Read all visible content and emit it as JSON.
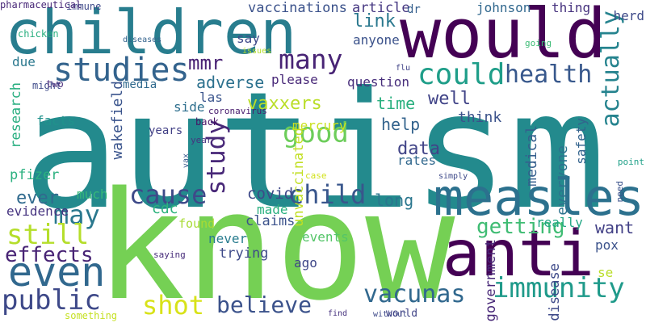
{
  "words": [
    {
      "text": "autism",
      "color": "#238a8d",
      "vertical": false
    },
    {
      "text": "know",
      "color": "#75d054",
      "vertical": false
    },
    {
      "text": "children",
      "color": "#287d8e",
      "vertical": false
    },
    {
      "text": "would",
      "color": "#440154",
      "vertical": false
    },
    {
      "text": "anti",
      "color": "#440154",
      "vertical": false
    },
    {
      "text": "measles",
      "color": "#2c718e",
      "vertical": false
    },
    {
      "text": "even",
      "color": "#31688e",
      "vertical": false
    },
    {
      "text": "studies",
      "color": "#33638d",
      "vertical": false
    },
    {
      "text": "could",
      "color": "#1f9e89",
      "vertical": false
    },
    {
      "text": "many",
      "color": "#482475",
      "vertical": false
    },
    {
      "text": "health",
      "color": "#38588c",
      "vertical": false
    },
    {
      "text": "actually",
      "color": "#25838e",
      "vertical": true
    },
    {
      "text": "good",
      "color": "#6ccd5a",
      "vertical": false
    },
    {
      "text": "study",
      "color": "#482878",
      "vertical": true
    },
    {
      "text": "cause",
      "color": "#3e4a89",
      "vertical": false
    },
    {
      "text": "child",
      "color": "#39568c",
      "vertical": false
    },
    {
      "text": "may",
      "color": "#2a788e",
      "vertical": false
    },
    {
      "text": "still",
      "color": "#b5de2b",
      "vertical": false
    },
    {
      "text": "effects",
      "color": "#482475",
      "vertical": false
    },
    {
      "text": "public",
      "color": "#3e4989",
      "vertical": false
    },
    {
      "text": "shot",
      "color": "#d8e219",
      "vertical": false
    },
    {
      "text": "believe",
      "color": "#3b528b",
      "vertical": false
    },
    {
      "text": "vacunas",
      "color": "#31688e",
      "vertical": false
    },
    {
      "text": "immunity",
      "color": "#1f9a8a",
      "vertical": false
    },
    {
      "text": "getting",
      "color": "#3fbc73",
      "vertical": false
    },
    {
      "text": "want",
      "color": "#424086",
      "vertical": false
    },
    {
      "text": "mmr",
      "color": "#482173",
      "vertical": false
    },
    {
      "text": "adverse",
      "color": "#2c718e",
      "vertical": false
    },
    {
      "text": "link",
      "color": "#2a788e",
      "vertical": false
    },
    {
      "text": "well",
      "color": "#404387",
      "vertical": false
    },
    {
      "text": "vaccinations",
      "color": "#3b528b",
      "vertical": false
    },
    {
      "text": "article",
      "color": "#453781",
      "vertical": false
    },
    {
      "text": "dr",
      "color": "#355f8d",
      "vertical": false
    },
    {
      "text": "johnson",
      "color": "#31688e",
      "vertical": false
    },
    {
      "text": "thing",
      "color": "#46327e",
      "vertical": false
    },
    {
      "text": "immune",
      "color": "#3e4989",
      "vertical": false
    },
    {
      "text": "say",
      "color": "#3e4989",
      "vertical": false
    },
    {
      "text": "anyone",
      "color": "#3b528b",
      "vertical": false
    },
    {
      "text": "due",
      "color": "#2a788e",
      "vertical": false
    },
    {
      "text": "please",
      "color": "#482878",
      "vertical": false
    },
    {
      "text": "question",
      "color": "#472d7b",
      "vertical": false
    },
    {
      "text": "las",
      "color": "#3a548c",
      "vertical": false
    },
    {
      "text": "side",
      "color": "#2e6f8e",
      "vertical": false
    },
    {
      "text": "media",
      "color": "#306a8e",
      "vertical": false
    },
    {
      "text": "facts",
      "color": "#20928c",
      "vertical": false
    },
    {
      "text": "research",
      "color": "#28ae80",
      "vertical": true
    },
    {
      "text": "wakefield",
      "color": "#3a548c",
      "vertical": true
    },
    {
      "text": "vaxxers",
      "color": "#bade28",
      "vertical": false
    },
    {
      "text": "time",
      "color": "#2ab07f",
      "vertical": false
    },
    {
      "text": "help",
      "color": "#33638d",
      "vertical": false
    },
    {
      "text": "think",
      "color": "#3b528b",
      "vertical": false
    },
    {
      "text": "medical",
      "color": "#355f8d",
      "vertical": true
    },
    {
      "text": "everyone",
      "color": "#2c728e",
      "vertical": true
    },
    {
      "text": "safety",
      "color": "#33638d",
      "vertical": true
    },
    {
      "text": "herd",
      "color": "#3e4a89",
      "vertical": false
    },
    {
      "text": "unvaccinated",
      "color": "#c2df23",
      "vertical": true
    },
    {
      "text": "mercury",
      "color": "#cae11f",
      "vertical": false
    },
    {
      "text": "data",
      "color": "#414487",
      "vertical": false
    },
    {
      "text": "rates",
      "color": "#31688e",
      "vertical": false
    },
    {
      "text": "years",
      "color": "#424086",
      "vertical": false
    },
    {
      "text": "pfizer",
      "color": "#2ab07f",
      "vertical": false
    },
    {
      "text": "ever",
      "color": "#306a8e",
      "vertical": false
    },
    {
      "text": "much",
      "color": "#35b779",
      "vertical": false
    },
    {
      "text": "covid",
      "color": "#3e4989",
      "vertical": false
    },
    {
      "text": "long",
      "color": "#2a768e",
      "vertical": false
    },
    {
      "text": "cdc",
      "color": "#2db27d",
      "vertical": false
    },
    {
      "text": "claims",
      "color": "#3b528b",
      "vertical": false
    },
    {
      "text": "evidence",
      "color": "#463480",
      "vertical": false
    },
    {
      "text": "events",
      "color": "#54c568",
      "vertical": false
    },
    {
      "text": "really",
      "color": "#22a785",
      "vertical": false
    },
    {
      "text": "pox",
      "color": "#3b528b",
      "vertical": false
    },
    {
      "text": "never",
      "color": "#287c8e",
      "vertical": false
    },
    {
      "text": "trying",
      "color": "#3e4a89",
      "vertical": false
    },
    {
      "text": "ago",
      "color": "#3f4788",
      "vertical": false
    },
    {
      "text": "se",
      "color": "#bade28",
      "vertical": false
    },
    {
      "text": "made",
      "color": "#2ab07f",
      "vertical": false
    },
    {
      "text": "found",
      "color": "#a8db34",
      "vertical": false
    },
    {
      "text": "government",
      "color": "#482878",
      "vertical": true
    },
    {
      "text": "disease",
      "color": "#3e4a89",
      "vertical": true
    },
    {
      "text": "chicken",
      "color": "#29af7f",
      "vertical": false
    },
    {
      "text": "diseases",
      "color": "#33638d",
      "vertical": false
    },
    {
      "text": "issues",
      "color": "#b5de2b",
      "vertical": false
    },
    {
      "text": "going",
      "color": "#3bbb75",
      "vertical": false
    },
    {
      "text": "might",
      "color": "#3e4a89",
      "vertical": false
    },
    {
      "text": "two",
      "color": "#472a7a",
      "vertical": false
    },
    {
      "text": "flu",
      "color": "#404387",
      "vertical": false
    },
    {
      "text": "coronavirus",
      "color": "#481c6e",
      "vertical": false
    },
    {
      "text": "back",
      "color": "#471365",
      "vertical": false
    },
    {
      "text": "year",
      "color": "#46337f",
      "vertical": false
    },
    {
      "text": "vax",
      "color": "#38598c",
      "vertical": true
    },
    {
      "text": "case",
      "color": "#d2e21b",
      "vertical": false
    },
    {
      "text": "simply",
      "color": "#3e4989",
      "vertical": false
    },
    {
      "text": "point",
      "color": "#1fa088",
      "vertical": false
    },
    {
      "text": "need",
      "color": "#3b528b",
      "vertical": true
    },
    {
      "text": "saying",
      "color": "#472c7a",
      "vertical": false
    },
    {
      "text": "without",
      "color": "#3e4989",
      "vertical": false
    },
    {
      "text": "find",
      "color": "#46327e",
      "vertical": false
    },
    {
      "text": "world",
      "color": "#414487",
      "vertical": false
    },
    {
      "text": "something",
      "color": "#c5e021",
      "vertical": false
    },
    {
      "text": "pharmaceutical",
      "color": "#482878",
      "vertical": false
    }
  ]
}
